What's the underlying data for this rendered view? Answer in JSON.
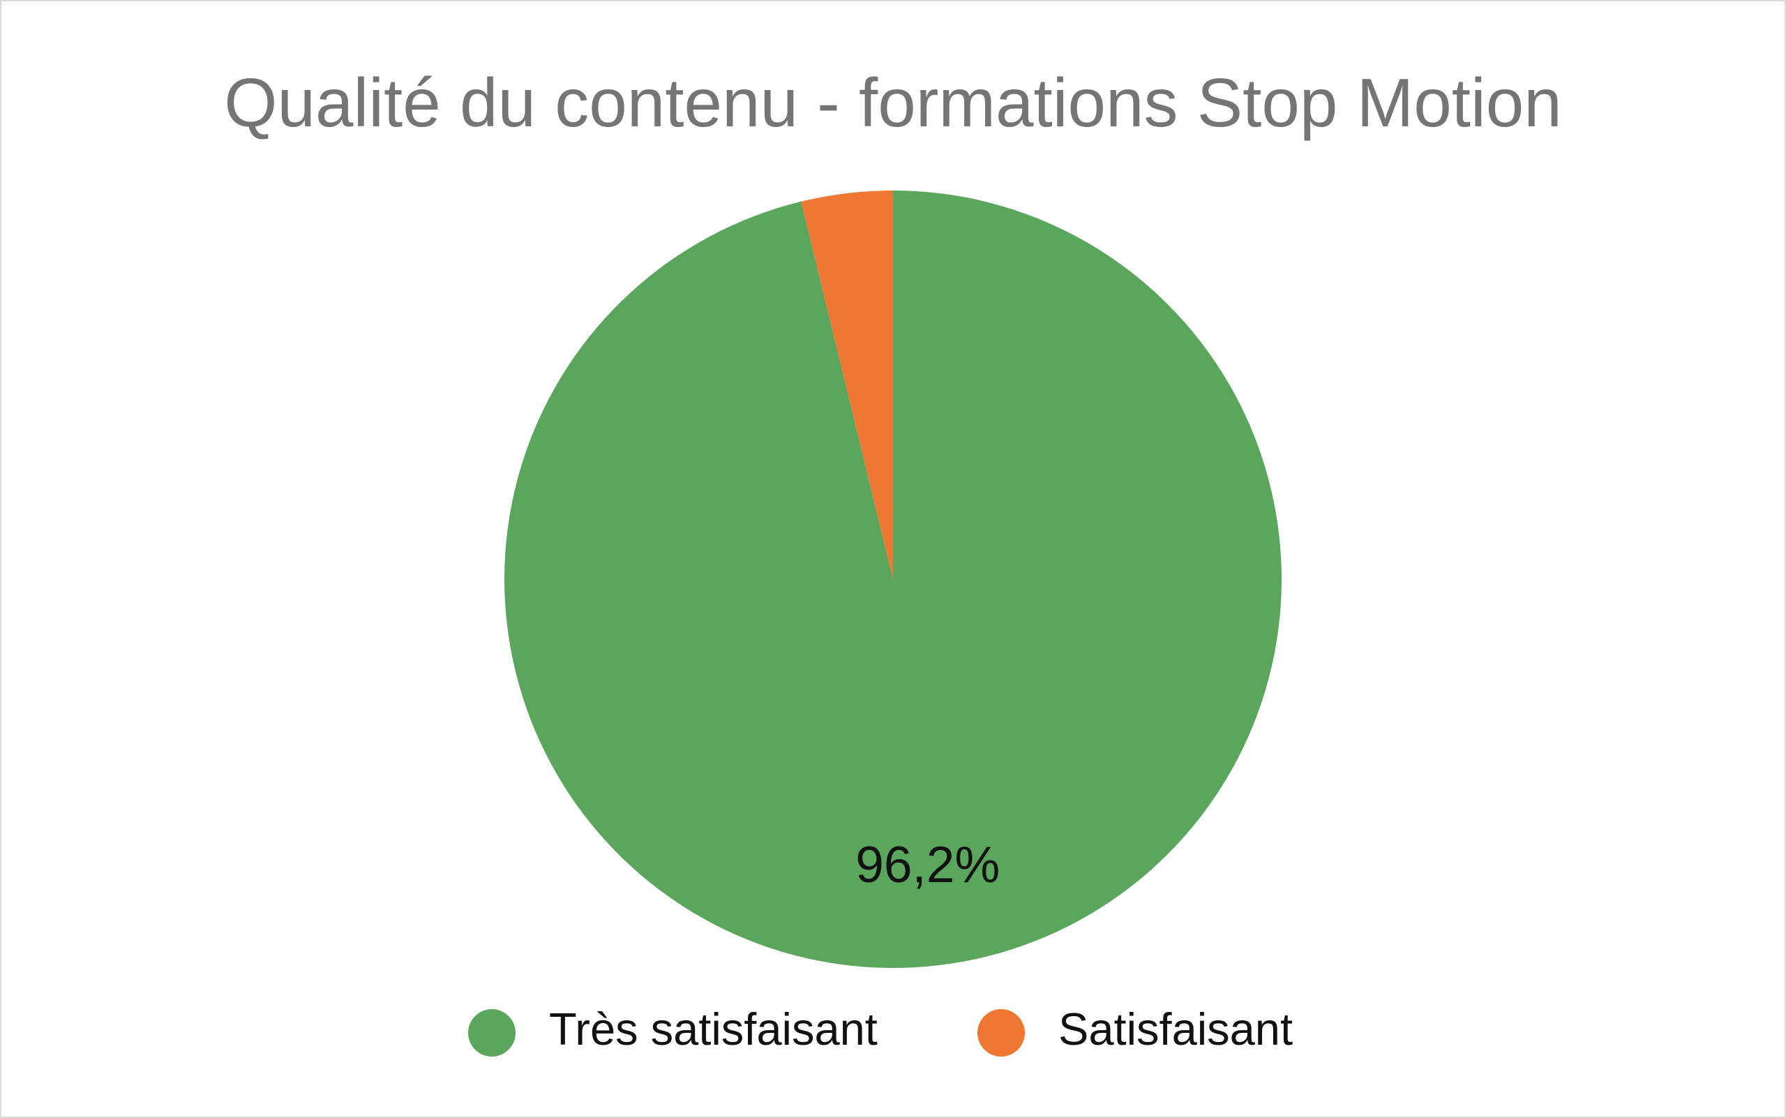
{
  "chart_data": {
    "type": "pie",
    "title": "Qualité du contenu - formations Stop Motion",
    "categories": [
      "Très satisfaisant",
      "Satisfaisant"
    ],
    "values": [
      96.2,
      3.8
    ],
    "value_labels": [
      "96,2%",
      null
    ],
    "colors": [
      "#5aa65c",
      "#ed7733"
    ],
    "legend": "bottom"
  }
}
